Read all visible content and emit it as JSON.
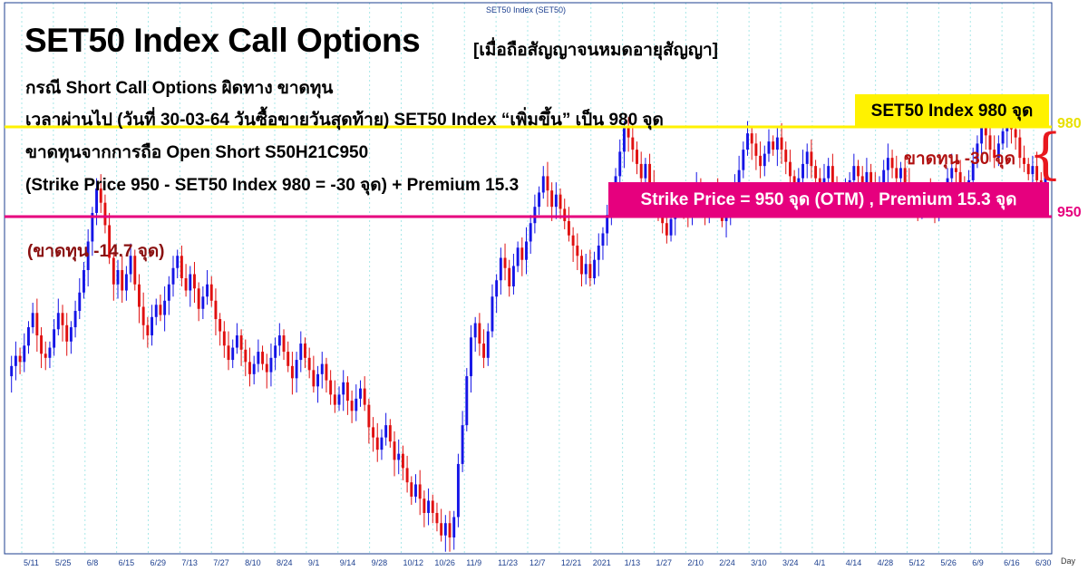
{
  "header": {
    "chart_caption": "SET50 Index (SET50)",
    "title": "SET50 Index Call Options",
    "title_bracket": "[เมื่อถือสัญญาจนหมดอายุสัญญา]",
    "line_1": "กรณี Short Call Options ผิดทาง ขาดทุน",
    "line_2": "เวลาผ่านไป (วันที่ 30-03-64 วันซื้อขายวันสุดท้าย) SET50 Index “เพิ่มขึ้น” เป็น 980 จุด",
    "line_3": "ขาดทุนจากการถือ Open Short S50H21C950",
    "line_4": "(Strike Price 950 - SET50 Index 980 = -30 จุด) + Premium 15.3"
  },
  "annotations": {
    "box_980": "SET50 Index 980 จุด",
    "box_strike": "Strike Price = 950 จุด (OTM) , Premium 15.3  จุด",
    "loss_30": "ขาดทุน -30 จุด",
    "loss_147": "(ขาดทุน -14.7 จุด)",
    "level_980": "980",
    "level_950": "950"
  },
  "colors": {
    "up_candle": "#1515e6",
    "down_candle": "#e01010",
    "yellow_line": "#fff200",
    "magenta_line": "#e6007e",
    "grid": "#a8e8e8",
    "axis": "#1c3f8f"
  },
  "chart_data": {
    "type": "candlestick",
    "title": "SET50 Index (SET50)",
    "xlabel": "Day",
    "x_ticks": [
      "5/11",
      "5/25",
      "6/8",
      "6/15",
      "6/29",
      "7/13",
      "7/27",
      "8/10",
      "8/24",
      "9/1",
      "9/14",
      "9/28",
      "10/12",
      "10/26",
      "11/9",
      "11/23",
      "12/7",
      "12/21",
      "2021",
      "1/13",
      "1/27",
      "2/10",
      "2/24",
      "3/10",
      "3/24",
      "4/1",
      "4/14",
      "4/28",
      "5/12",
      "5/26",
      "6/9",
      "6/16",
      "6/30"
    ],
    "reference_lines": [
      {
        "label": "980",
        "value": 980,
        "color": "#fff200"
      },
      {
        "label": "950",
        "value": 950,
        "color": "#e6007e"
      }
    ],
    "ylim": [
      740,
      1010
    ],
    "closes": [
      827,
      832,
      837,
      834,
      842,
      851,
      858,
      847,
      838,
      836,
      841,
      850,
      858,
      852,
      844,
      851,
      859,
      868,
      879,
      893,
      907,
      919,
      912,
      901,
      885,
      872,
      879,
      869,
      877,
      886,
      872,
      861,
      852,
      847,
      856,
      862,
      857,
      864,
      872,
      880,
      886,
      875,
      869,
      877,
      870,
      860,
      866,
      872,
      864,
      855,
      849,
      842,
      835,
      841,
      847,
      840,
      834,
      828,
      833,
      839,
      833,
      829,
      836,
      842,
      847,
      839,
      832,
      826,
      835,
      843,
      836,
      830,
      822,
      828,
      833,
      825,
      818,
      813,
      818,
      824,
      815,
      810,
      816,
      821,
      813,
      802,
      797,
      791,
      797,
      803,
      795,
      786,
      789,
      782,
      775,
      768,
      774,
      767,
      760,
      766,
      760,
      755,
      749,
      755,
      748,
      758,
      784,
      803,
      827,
      846,
      853,
      843,
      836,
      849,
      866,
      874,
      885,
      880,
      871,
      881,
      890,
      884,
      893,
      902,
      910,
      917,
      925,
      918,
      910,
      916,
      909,
      903,
      896,
      891,
      886,
      877,
      882,
      875,
      884,
      891,
      897,
      906,
      914,
      925,
      937,
      949,
      944,
      938,
      931,
      924,
      931,
      921,
      915,
      909,
      902,
      896,
      904,
      912,
      916,
      910,
      905,
      913,
      920,
      914,
      908,
      912,
      917,
      910,
      903,
      908,
      915,
      921,
      928,
      938,
      946,
      941,
      935,
      930,
      936,
      942,
      938,
      944,
      938,
      932,
      925,
      918,
      924,
      931,
      937,
      930,
      924,
      918,
      924,
      930,
      922,
      916,
      911,
      917,
      923,
      930,
      925,
      920,
      927,
      921,
      916,
      922,
      928,
      934,
      929,
      924,
      929,
      922,
      916,
      912,
      908,
      912,
      917,
      913,
      909,
      914,
      919,
      924,
      929,
      927,
      922,
      919,
      923,
      932,
      941,
      949,
      945,
      938,
      934,
      941,
      947,
      952,
      948,
      944,
      934,
      931,
      926,
      930,
      923,
      921,
      925
    ]
  }
}
